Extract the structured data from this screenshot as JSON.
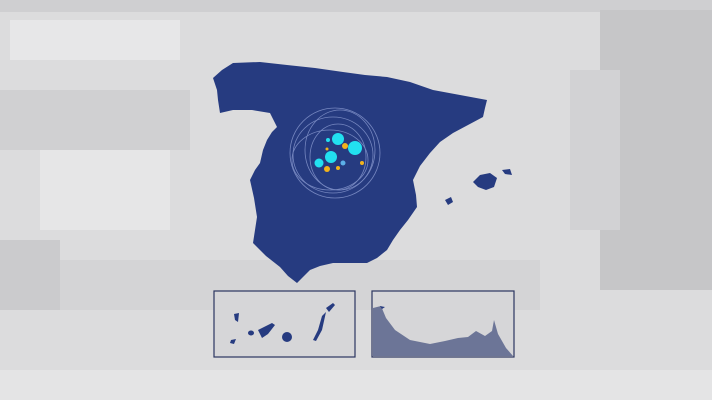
{
  "colors": {
    "background": "#dcdcdd",
    "land": "#263b80",
    "inset_land": "#6c7597",
    "inset_border": "#2b3560",
    "marker_cyan": "#22e0f0",
    "marker_orange": "#f2b31c",
    "orbit": "#8a9ad0"
  },
  "map": {
    "region": "Spain",
    "insets": [
      "canary-islands",
      "ceuta-melilla-coast"
    ]
  }
}
